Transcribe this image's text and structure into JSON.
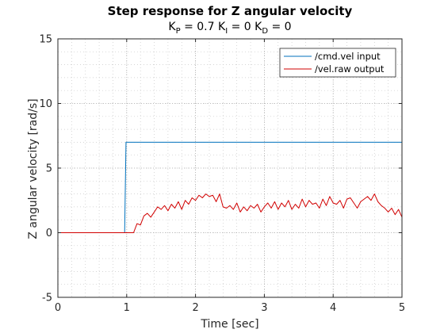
{
  "chart_data": {
    "type": "line",
    "title": "Step response for Z angular velocity",
    "subtitle": {
      "kp_label": "K",
      "kp_sub": "P",
      "kp_value": " = 0.7  ",
      "ki_label": "K",
      "ki_sub": "I",
      "ki_value": " = 0  ",
      "kd_label": "K",
      "kd_sub": "D",
      "kd_value": " = 0"
    },
    "xlabel": "Time [sec]",
    "ylabel": "Z angular velocity [rad/s]",
    "xlim": [
      0,
      5
    ],
    "ylim": [
      -5,
      15
    ],
    "x_ticks": [
      0,
      1,
      2,
      3,
      4,
      5
    ],
    "y_ticks": [
      -5,
      0,
      5,
      10,
      15
    ],
    "x_tick_labels": [
      "0",
      "1",
      "2",
      "3",
      "4",
      "5"
    ],
    "y_tick_labels": [
      "-5",
      "0",
      "5",
      "10",
      "15"
    ],
    "grid": true,
    "minor_grid": true,
    "legend_position": "top-right",
    "series": [
      {
        "name": "/cmd.vel input",
        "color": "#0072bd",
        "x": [
          0,
          0.97,
          0.99,
          5
        ],
        "y": [
          0,
          0,
          7,
          7
        ]
      },
      {
        "name": "/vel.raw output",
        "color": "#d10000",
        "x": [
          0,
          1.1,
          1.15,
          1.2,
          1.25,
          1.3,
          1.35,
          1.4,
          1.45,
          1.5,
          1.55,
          1.6,
          1.65,
          1.7,
          1.75,
          1.8,
          1.85,
          1.9,
          1.95,
          2.0,
          2.05,
          2.1,
          2.15,
          2.2,
          2.25,
          2.3,
          2.35,
          2.4,
          2.45,
          2.5,
          2.55,
          2.6,
          2.65,
          2.7,
          2.75,
          2.8,
          2.85,
          2.9,
          2.95,
          3.0,
          3.05,
          3.1,
          3.15,
          3.2,
          3.25,
          3.3,
          3.35,
          3.4,
          3.45,
          3.5,
          3.55,
          3.6,
          3.65,
          3.7,
          3.75,
          3.8,
          3.85,
          3.9,
          3.95,
          4.0,
          4.05,
          4.1,
          4.15,
          4.2,
          4.25,
          4.3,
          4.35,
          4.4,
          4.45,
          4.5,
          4.55,
          4.6,
          4.65,
          4.7,
          4.75,
          4.8,
          4.85,
          4.9,
          4.95,
          5.0
        ],
        "y": [
          0,
          0,
          0.7,
          0.6,
          1.3,
          1.5,
          1.2,
          1.6,
          2.0,
          1.8,
          2.1,
          1.7,
          2.2,
          1.9,
          2.4,
          1.8,
          2.5,
          2.2,
          2.7,
          2.5,
          2.9,
          2.7,
          3.0,
          2.8,
          2.9,
          2.4,
          3.0,
          2.0,
          1.9,
          2.1,
          1.8,
          2.3,
          1.6,
          2.0,
          1.7,
          2.1,
          1.9,
          2.2,
          1.6,
          2.0,
          2.3,
          1.9,
          2.4,
          1.8,
          2.3,
          2.0,
          2.5,
          1.8,
          2.2,
          1.9,
          2.6,
          2.0,
          2.5,
          2.2,
          2.3,
          1.9,
          2.6,
          2.1,
          2.8,
          2.3,
          2.2,
          2.5,
          1.9,
          2.6,
          2.7,
          2.3,
          1.9,
          2.4,
          2.6,
          2.8,
          2.5,
          3.0,
          2.4,
          2.1,
          1.9,
          1.6,
          1.9,
          1.4,
          1.8,
          1.2
        ]
      }
    ]
  }
}
